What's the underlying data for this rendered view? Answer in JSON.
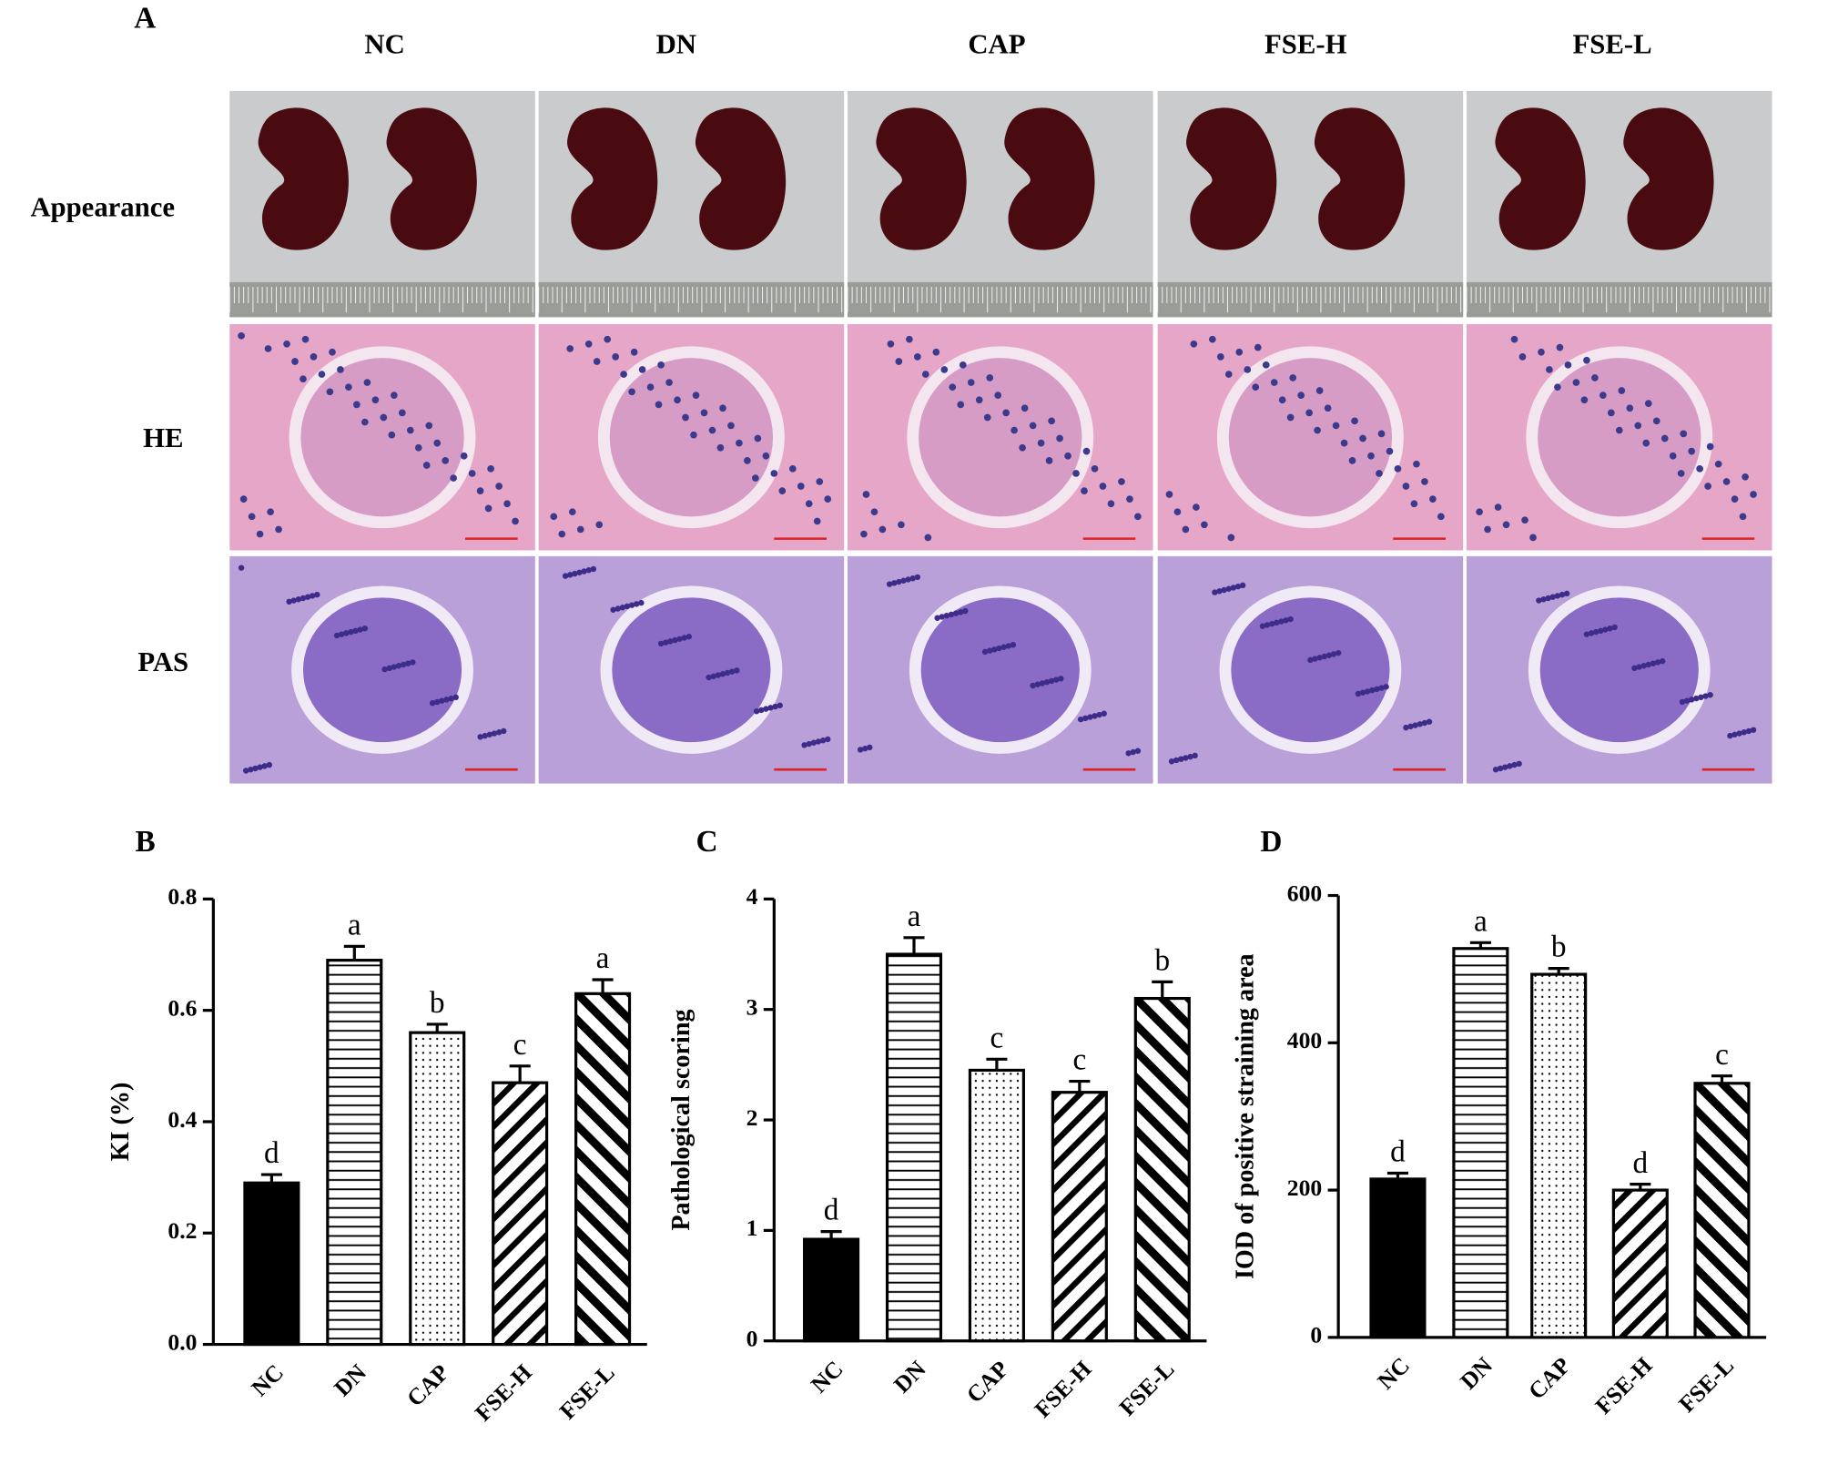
{
  "panel_a": {
    "label": "A",
    "columns": [
      "NC",
      "DN",
      "CAP",
      "FSE-H",
      "FSE-L"
    ],
    "rows": [
      "Appearance",
      "HE",
      "PAS"
    ]
  },
  "chart_data": [
    {
      "type": "bar",
      "panel_label": "B",
      "ylabel": "KI (%)",
      "categories": [
        "NC",
        "DN",
        "CAP",
        "FSE-H",
        "FSE-L"
      ],
      "values": [
        0.29,
        0.69,
        0.56,
        0.47,
        0.63
      ],
      "errors": [
        0.015,
        0.025,
        0.015,
        0.03,
        0.025
      ],
      "annotations": [
        "d",
        "a",
        "b",
        "c",
        "a"
      ],
      "patterns": [
        "solid",
        "horizontal",
        "dots",
        "diagonal-thin",
        "diagonal-thick"
      ],
      "ylim": [
        0,
        0.8
      ],
      "yticks": [
        {
          "value": 0,
          "label": "0.0"
        },
        0.2,
        0.4,
        0.6,
        0.8
      ]
    },
    {
      "type": "bar",
      "panel_label": "C",
      "ylabel": "Pathological scoring",
      "categories": [
        "NC",
        "DN",
        "CAP",
        "FSE-H",
        "FSE-L"
      ],
      "values": [
        0.92,
        3.5,
        2.45,
        2.25,
        3.1
      ],
      "errors": [
        0.07,
        0.15,
        0.1,
        0.1,
        0.15
      ],
      "annotations": [
        "d",
        "a",
        "c",
        "c",
        "b"
      ],
      "patterns": [
        "solid",
        "horizontal",
        "dots",
        "diagonal-thin",
        "diagonal-thick"
      ],
      "ylim": [
        0,
        4
      ],
      "yticks": [
        0,
        1,
        2,
        3,
        4
      ]
    },
    {
      "type": "bar",
      "panel_label": "D",
      "ylabel": "IOD of positive straining area",
      "categories": [
        "NC",
        "DN",
        "CAP",
        "FSE-H",
        "FSE-L"
      ],
      "values": [
        215,
        528,
        493,
        200,
        345
      ],
      "errors": [
        8,
        8,
        8,
        8,
        10
      ],
      "annotations": [
        "d",
        "a",
        "b",
        "d",
        "c"
      ],
      "patterns": [
        "solid",
        "horizontal",
        "dots",
        "diagonal-thin",
        "diagonal-thick"
      ],
      "ylim": [
        0,
        600
      ],
      "yticks": [
        0,
        200,
        400,
        600
      ]
    }
  ]
}
